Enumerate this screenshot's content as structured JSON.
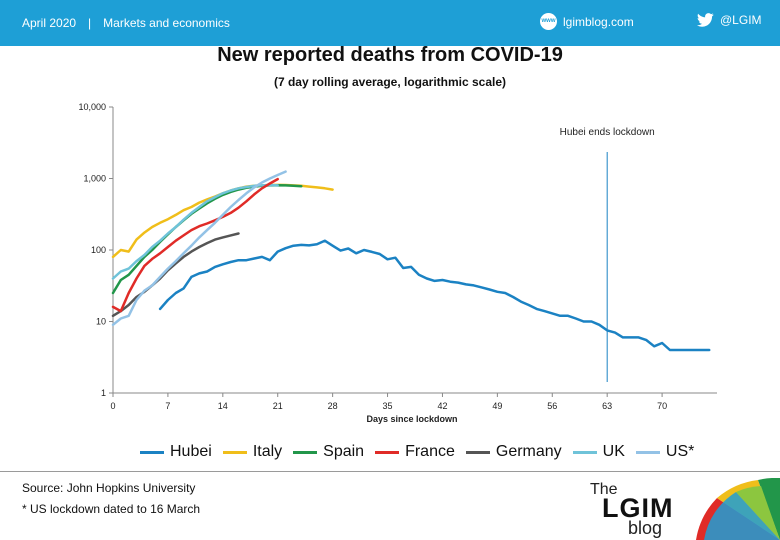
{
  "header": {
    "date": "April 2020",
    "separator": "|",
    "section": "Markets and economics",
    "site_icon": "www",
    "site": "lgimblog.com",
    "twitter_handle": "@LGIM"
  },
  "colors": {
    "header_bg": "#1e9fd6",
    "Hubei": "#1b82c3",
    "Italy": "#f0be1a",
    "Spain": "#22964a",
    "France": "#e02b27",
    "Germany": "#555555",
    "UK": "#6fc3d9",
    "US*": "#93c2e6",
    "annotation_line": "#1b82c3"
  },
  "chart_data": {
    "type": "line",
    "title": "New reported deaths from COVID-19",
    "subtitle": "(7 day rolling average, logarithmic scale)",
    "xlabel": "Days since lockdown",
    "ylabel": "",
    "x_ticks": [
      0,
      7,
      14,
      21,
      28,
      35,
      42,
      49,
      56,
      63,
      70
    ],
    "y_ticks": [
      1,
      10,
      100,
      1000,
      10000
    ],
    "y_tick_labels": [
      "1",
      "10",
      "100",
      "1,000",
      "10,000"
    ],
    "xlim": [
      0,
      77
    ],
    "ylim": [
      1,
      10000
    ],
    "y_scale": "log",
    "grid": false,
    "legend": "bottom",
    "annotation": {
      "x": 63,
      "label": "Hubei ends lockdown"
    },
    "series": [
      {
        "name": "Hubei",
        "x": [
          6,
          7,
          8,
          9,
          10,
          11,
          12,
          13,
          14,
          15,
          16,
          17,
          18,
          19,
          20,
          21,
          22,
          23,
          24,
          25,
          26,
          27,
          28,
          29,
          30,
          31,
          32,
          33,
          34,
          35,
          36,
          37,
          38,
          39,
          40,
          41,
          42,
          43,
          44,
          45,
          46,
          47,
          48,
          49,
          50,
          51,
          52,
          53,
          54,
          55,
          56,
          57,
          58,
          59,
          60,
          61,
          62,
          63,
          64,
          65,
          66,
          67,
          68,
          69,
          70,
          71,
          72,
          73,
          74,
          75,
          76
        ],
        "values": [
          15,
          20,
          25,
          29,
          42,
          47,
          50,
          58,
          63,
          68,
          72,
          72,
          76,
          80,
          72,
          95,
          106,
          115,
          118,
          116,
          120,
          135,
          115,
          98,
          105,
          90,
          100,
          94,
          88,
          74,
          78,
          56,
          58,
          45,
          40,
          37,
          38,
          36,
          35,
          33,
          32,
          30,
          28,
          26,
          25,
          22,
          19,
          17,
          15,
          14,
          13,
          12,
          12,
          11,
          10,
          10,
          9,
          7.5,
          7,
          6,
          6,
          6,
          5.5,
          4.5,
          5,
          4,
          4,
          4,
          4,
          4,
          4
        ]
      },
      {
        "name": "Italy",
        "x": [
          0,
          1,
          2,
          3,
          4,
          5,
          6,
          7,
          8,
          9,
          10,
          11,
          12,
          13,
          14,
          15,
          16,
          17,
          18,
          19,
          20,
          21,
          22,
          23,
          24,
          25,
          26,
          27,
          28
        ],
        "values": [
          80,
          100,
          95,
          140,
          175,
          210,
          240,
          270,
          310,
          360,
          400,
          460,
          510,
          560,
          620,
          680,
          730,
          770,
          790,
          800,
          810,
          815,
          810,
          800,
          790,
          770,
          750,
          730,
          700
        ]
      },
      {
        "name": "Spain",
        "x": [
          0,
          1,
          2,
          3,
          4,
          5,
          6,
          7,
          8,
          9,
          10,
          11,
          12,
          13,
          14,
          15,
          16,
          17,
          18,
          19,
          20,
          21,
          22,
          23,
          24
        ],
        "values": [
          25,
          38,
          45,
          60,
          80,
          100,
          130,
          165,
          210,
          260,
          320,
          380,
          450,
          520,
          590,
          650,
          700,
          740,
          770,
          790,
          800,
          805,
          800,
          790,
          780
        ]
      },
      {
        "name": "France",
        "x": [
          0,
          1,
          2,
          3,
          4,
          5,
          6,
          7,
          8,
          9,
          10,
          11,
          12,
          13,
          14,
          15,
          16,
          17,
          18,
          19,
          20,
          21
        ],
        "values": [
          16,
          14,
          25,
          40,
          60,
          75,
          90,
          110,
          135,
          160,
          190,
          215,
          235,
          260,
          290,
          330,
          390,
          480,
          600,
          730,
          850,
          980
        ]
      },
      {
        "name": "Germany",
        "x": [
          0,
          1,
          2,
          3,
          4,
          5,
          6,
          7,
          8,
          9,
          10,
          11,
          12,
          13,
          14,
          15,
          16
        ],
        "values": [
          12,
          14,
          17,
          22,
          26,
          32,
          40,
          52,
          65,
          80,
          95,
          110,
          125,
          140,
          150,
          160,
          170
        ]
      },
      {
        "name": "UK",
        "x": [
          0,
          1,
          2,
          3,
          4,
          5,
          6,
          7,
          8,
          9,
          10,
          11,
          12,
          13,
          14,
          15,
          16,
          17,
          18,
          19,
          20,
          21
        ],
        "values": [
          40,
          50,
          55,
          70,
          85,
          110,
          135,
          170,
          210,
          265,
          330,
          400,
          480,
          550,
          620,
          680,
          730,
          760,
          790,
          800,
          810,
          800
        ]
      },
      {
        "name": "US*",
        "x": [
          0,
          1,
          2,
          3,
          4,
          5,
          6,
          7,
          8,
          9,
          10,
          11,
          12,
          13,
          14,
          15,
          16,
          17,
          18,
          19,
          20,
          21,
          22
        ],
        "values": [
          9,
          11,
          12,
          20,
          27,
          32,
          42,
          55,
          70,
          90,
          115,
          150,
          190,
          240,
          310,
          400,
          500,
          620,
          750,
          880,
          1000,
          1120,
          1250
        ]
      }
    ]
  },
  "legend": [
    "Hubei",
    "Italy",
    "Spain",
    "France",
    "Germany",
    "UK",
    "US*"
  ],
  "footer": {
    "source": "Source: John Hopkins University",
    "note": "* US lockdown dated to 16 March"
  },
  "logo": {
    "the": "The",
    "name": "LGIM",
    "blog": "blog"
  }
}
